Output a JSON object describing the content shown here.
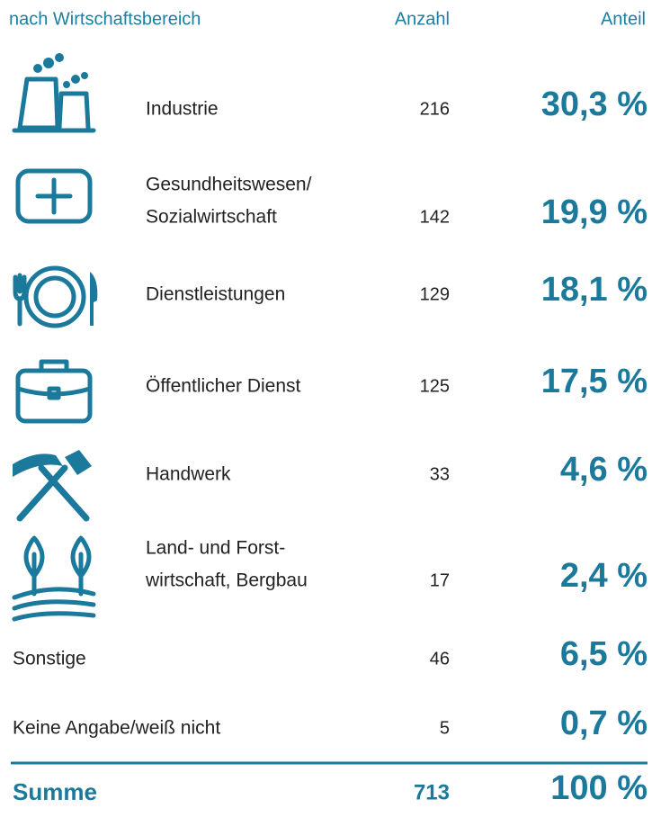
{
  "header": {
    "category": "nach Wirtschaftsbereich",
    "count": "Anzahl",
    "share": "Anteil"
  },
  "rows": [
    {
      "lines": [
        "Industrie"
      ],
      "count": 216,
      "share": "30,3 %"
    },
    {
      "lines": [
        "Gesundheitswesen/",
        "Sozialwirtschaft"
      ],
      "count": 142,
      "share": "19,9 %"
    },
    {
      "lines": [
        "Dienstleistungen"
      ],
      "count": 129,
      "share": "18,1 %"
    },
    {
      "lines": [
        "Öffentlicher Dienst"
      ],
      "count": 125,
      "share": "17,5 %"
    },
    {
      "lines": [
        "Handwerk"
      ],
      "count": 33,
      "share": "4,6 %"
    },
    {
      "lines": [
        "Land- und Forst-",
        "wirtschaft, Bergbau"
      ],
      "count": 17,
      "share": "2,4 %"
    },
    {
      "lines": [
        "Sonstige"
      ],
      "count": 46,
      "share": "6,5 %"
    },
    {
      "lines": [
        "Keine Angabe/weiß nicht"
      ],
      "count": 5,
      "share": "0,7 %"
    }
  ],
  "total": {
    "label": "Summe",
    "count": 713,
    "share": "100 %"
  }
}
